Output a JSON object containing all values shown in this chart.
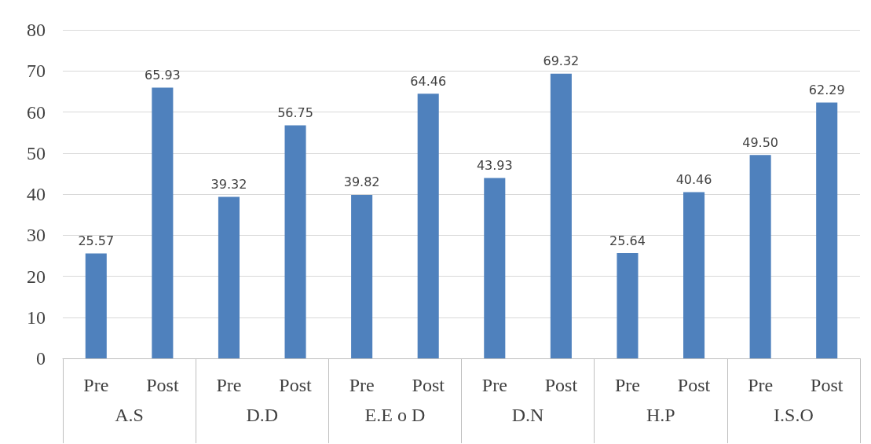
{
  "chart_data": {
    "type": "bar",
    "categories": [
      "Pre",
      "Post",
      "Pre",
      "Post",
      "Pre",
      "Post",
      "Pre",
      "Post",
      "Pre",
      "Post",
      "Pre",
      "Post"
    ],
    "values": [
      25.57,
      65.93,
      39.32,
      56.75,
      39.82,
      64.46,
      43.93,
      69.32,
      25.64,
      40.46,
      49.5,
      62.29
    ],
    "value_labels": [
      "25.57",
      "65.93",
      "39.32",
      "56.75",
      "39.82",
      "64.46",
      "43.93",
      "69.32",
      "25.64",
      "40.46",
      "49.50",
      "62.29"
    ],
    "color": "#4f81bd",
    "ylim": [
      0,
      80
    ],
    "yticks": [
      0,
      10,
      20,
      30,
      40,
      50,
      60,
      70,
      80
    ],
    "grid": "y",
    "annotations": [
      "A.S",
      "D.D",
      "E.E o D",
      "D.N",
      "H.P",
      "I.S.O"
    ]
  }
}
